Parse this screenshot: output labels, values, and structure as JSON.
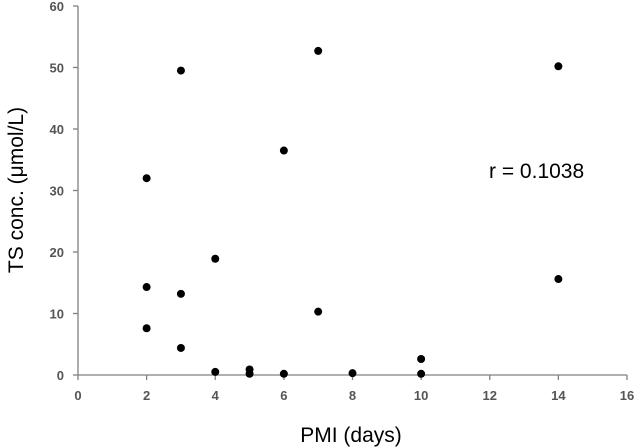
{
  "chart_data": {
    "type": "scatter",
    "xlabel": "PMI (days)",
    "ylabel": "TS conc. (μmol/L)",
    "xlim": [
      0,
      16
    ],
    "ylim": [
      0,
      60
    ],
    "xticks": [
      0,
      2,
      4,
      6,
      8,
      10,
      12,
      14,
      16
    ],
    "yticks": [
      0,
      10,
      20,
      30,
      40,
      50,
      60
    ],
    "grid": false,
    "annotation": "r = 0.1038",
    "series": [
      {
        "points": [
          {
            "x": 2,
            "y": 32.0
          },
          {
            "x": 2,
            "y": 14.3
          },
          {
            "x": 2,
            "y": 7.6
          },
          {
            "x": 3,
            "y": 49.5
          },
          {
            "x": 3,
            "y": 13.2
          },
          {
            "x": 3,
            "y": 4.4
          },
          {
            "x": 4,
            "y": 18.9
          },
          {
            "x": 4,
            "y": 0.5
          },
          {
            "x": 5,
            "y": 0.9
          },
          {
            "x": 5,
            "y": 0.2
          },
          {
            "x": 6,
            "y": 36.5
          },
          {
            "x": 6,
            "y": 0.2
          },
          {
            "x": 7,
            "y": 52.7
          },
          {
            "x": 7,
            "y": 10.3
          },
          {
            "x": 8,
            "y": 0.3
          },
          {
            "x": 10,
            "y": 2.6
          },
          {
            "x": 10,
            "y": 0.2
          },
          {
            "x": 14,
            "y": 50.2
          },
          {
            "x": 14,
            "y": 15.6
          }
        ],
        "color": "#000000"
      }
    ]
  }
}
